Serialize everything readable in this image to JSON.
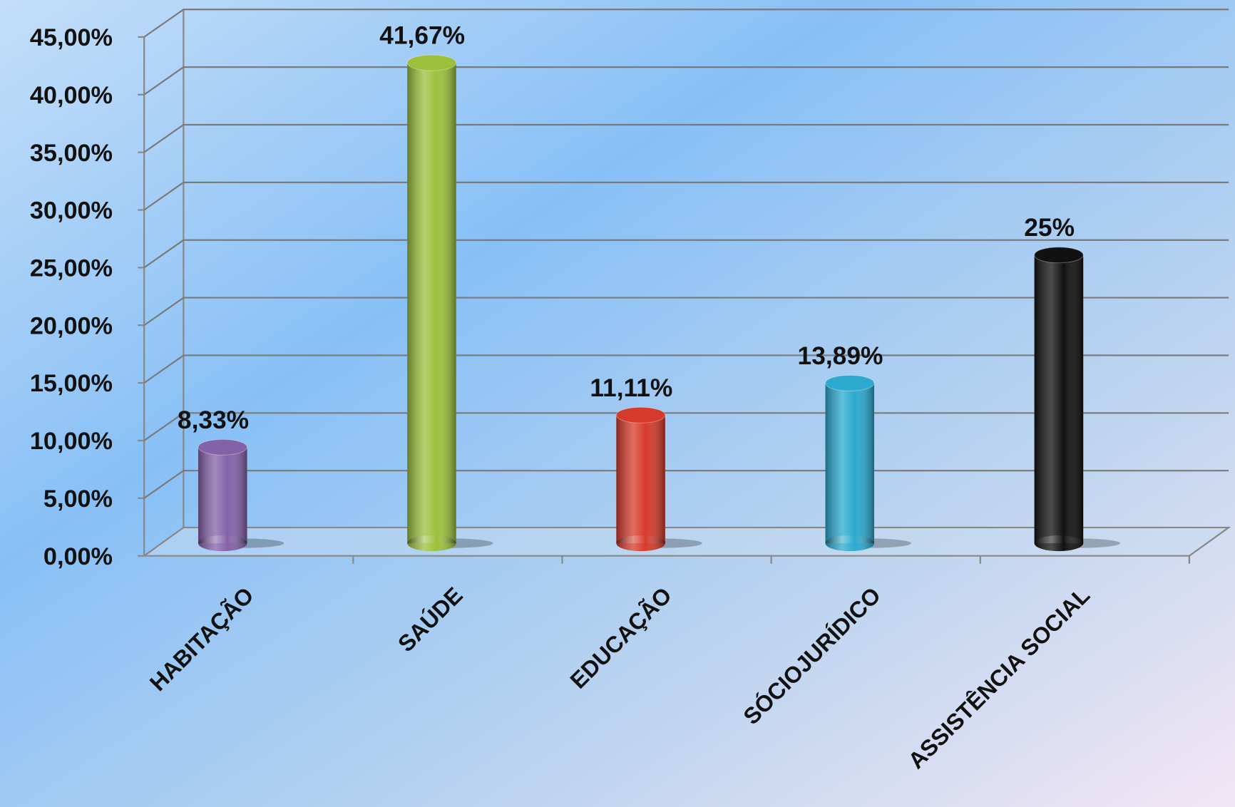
{
  "chart_data": {
    "type": "bar3d",
    "categories": [
      "HABITAÇÃO",
      "SAÚDE",
      "EDUCAÇÃO",
      "SÓCIOJURÍDICO",
      "ASSISTÊNCIA SOCIAL"
    ],
    "values": [
      8.33,
      41.67,
      11.11,
      13.89,
      25
    ],
    "value_labels": [
      "8,33%",
      "41,67%",
      "11,11%",
      "13,89%",
      "25%"
    ],
    "colors": [
      "#8462a8",
      "#9cc03c",
      "#d63a2c",
      "#2ba9cf",
      "#111111"
    ],
    "ylim": [
      0,
      45
    ],
    "yticks": [
      {
        "value": 0,
        "label": "0,00%"
      },
      {
        "value": 5,
        "label": "5,00%"
      },
      {
        "value": 10,
        "label": "10,00%"
      },
      {
        "value": 15,
        "label": "15,00%"
      },
      {
        "value": 20,
        "label": "20,00%"
      },
      {
        "value": 25,
        "label": "25,00%"
      },
      {
        "value": 30,
        "label": "30,00%"
      },
      {
        "value": 35,
        "label": "35,00%"
      },
      {
        "value": 40,
        "label": "40,00%"
      },
      {
        "value": 45,
        "label": "45,00%"
      }
    ],
    "grid": true
  }
}
